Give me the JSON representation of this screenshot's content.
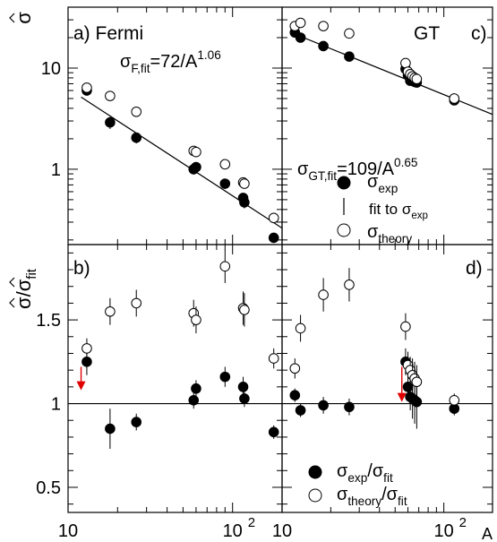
{
  "figure": {
    "x_axis_label": "A",
    "y_axis_label_top": "σ̂",
    "y_axis_label_bottom": "σ̂/σ̂_fit",
    "x_tick_labels": {
      "10": "10",
      "100": "10^2"
    }
  },
  "chart_data": [
    {
      "type": "scatter",
      "panel": "a",
      "panel_label": "a) Fermi",
      "fit_label": "σ_F,fit=72/A^1.06",
      "fit": {
        "coefficient": 72,
        "exponent": -1.06
      },
      "x_scale": "log",
      "y_scale": "log",
      "xlim": [
        10,
        200
      ],
      "ylim": [
        0.18,
        40
      ],
      "y_ticks": [
        1,
        10
      ],
      "series": [
        {
          "name": "σ_exp",
          "marker": "filled-circle",
          "points": [
            [
              13,
              6.0
            ],
            [
              18,
              2.9
            ],
            [
              26,
              2.05
            ],
            [
              58,
              1.0
            ],
            [
              60,
              1.05
            ],
            [
              90,
              0.72
            ],
            [
              116,
              0.52
            ],
            [
              118,
              0.47
            ],
            [
              178,
              0.21
            ]
          ],
          "errors": [
            0.5,
            0.4,
            0.25,
            0.1,
            0.1,
            0.08,
            0.06,
            0.06,
            0.02
          ]
        },
        {
          "name": "σ_theory",
          "marker": "open-circle",
          "points": [
            [
              13,
              6.4
            ],
            [
              18,
              5.3
            ],
            [
              26,
              3.7
            ],
            [
              58,
              1.52
            ],
            [
              60,
              1.48
            ],
            [
              90,
              1.12
            ],
            [
              116,
              0.74
            ],
            [
              118,
              0.72
            ],
            [
              178,
              0.33
            ]
          ]
        }
      ]
    },
    {
      "type": "scatter",
      "panel": "c",
      "panel_label": "GT",
      "panel_letter": "c)",
      "fit_label": "σ_GT,fit=109/A^0.65",
      "fit": {
        "coefficient": 109,
        "exponent": -0.65
      },
      "x_scale": "log",
      "y_scale": "log",
      "xlim": [
        10,
        200
      ],
      "ylim": [
        0.18,
        40
      ],
      "series": [
        {
          "name": "σ_exp",
          "marker": "filled-circle",
          "points": [
            [
              12,
              22.5
            ],
            [
              13,
              20
            ],
            [
              18,
              16.5
            ],
            [
              26,
              13
            ],
            [
              58,
              9.8
            ],
            [
              60,
              8.5
            ],
            [
              62,
              7.5
            ],
            [
              64,
              7.6
            ],
            [
              66,
              7.3
            ],
            [
              68,
              7.2
            ],
            [
              116,
              4.8
            ]
          ]
        },
        {
          "name": "σ_theory",
          "marker": "open-circle",
          "points": [
            [
              12,
              26
            ],
            [
              13,
              28
            ],
            [
              18,
              26
            ],
            [
              26,
              22
            ],
            [
              58,
              11.2
            ],
            [
              60,
              9.2
            ],
            [
              62,
              8.7
            ],
            [
              64,
              8.3
            ],
            [
              66,
              8.0
            ],
            [
              68,
              7.8
            ],
            [
              116,
              5.0
            ]
          ]
        }
      ]
    },
    {
      "type": "scatter",
      "panel": "b",
      "panel_label": "b)",
      "x_scale": "log",
      "y_scale": "linear",
      "xlim": [
        10,
        200
      ],
      "ylim": [
        0.35,
        1.95
      ],
      "y_ticks": [
        0.5,
        1,
        1.5
      ],
      "reference_line": 1,
      "arrow": {
        "x": 12,
        "from": 1.22,
        "to": 1.08,
        "color": "#e00000"
      },
      "series": [
        {
          "name": "σ_exp/σ_fit",
          "marker": "filled-circle",
          "points": [
            [
              13,
              1.25
            ],
            [
              18,
              0.85
            ],
            [
              26,
              0.89
            ],
            [
              58,
              1.02
            ],
            [
              60,
              1.09
            ],
            [
              90,
              1.16
            ],
            [
              116,
              1.1
            ],
            [
              118,
              1.03
            ],
            [
              178,
              0.83
            ]
          ],
          "errors": [
            0.08,
            0.12,
            0.05,
            0.05,
            0.05,
            0.06,
            0.06,
            0.05,
            0.04
          ]
        },
        {
          "name": "σ_theory/σ_fit",
          "marker": "open-circle",
          "points": [
            [
              13,
              1.33
            ],
            [
              18,
              1.55
            ],
            [
              26,
              1.6
            ],
            [
              58,
              1.54
            ],
            [
              60,
              1.5
            ],
            [
              90,
              1.82
            ],
            [
              116,
              1.57
            ],
            [
              118,
              1.56
            ],
            [
              178,
              1.27
            ]
          ],
          "errors": [
            0.06,
            0.08,
            0.08,
            0.08,
            0.08,
            0.1,
            0.1,
            0.1,
            0.06
          ]
        }
      ]
    },
    {
      "type": "scatter",
      "panel": "d",
      "panel_label": "d)",
      "x_scale": "log",
      "y_scale": "linear",
      "xlim": [
        10,
        200
      ],
      "ylim": [
        0.35,
        1.95
      ],
      "reference_line": 1,
      "arrow": {
        "x": 55,
        "from": 1.22,
        "to": 1.01,
        "color": "#e00000"
      },
      "series": [
        {
          "name": "σ_exp/σ_fit",
          "marker": "filled-circle",
          "points": [
            [
              12,
              1.05
            ],
            [
              13,
              0.96
            ],
            [
              18,
              0.99
            ],
            [
              26,
              0.98
            ],
            [
              58,
              1.25
            ],
            [
              60,
              1.1
            ],
            [
              62,
              1.04
            ],
            [
              64,
              1.03
            ],
            [
              66,
              1.02
            ],
            [
              68,
              1.01
            ],
            [
              116,
              0.97
            ]
          ],
          "errors": [
            0.04,
            0.04,
            0.05,
            0.05,
            0.08,
            0.08,
            0.08,
            0.12,
            0.14,
            0.16,
            0.04
          ]
        },
        {
          "name": "σ_theory/σ_fit",
          "marker": "open-circle",
          "points": [
            [
              12,
              1.21
            ],
            [
              13,
              1.45
            ],
            [
              18,
              1.65
            ],
            [
              26,
              1.71
            ],
            [
              58,
              1.46
            ],
            [
              60,
              1.23
            ],
            [
              62,
              1.2
            ],
            [
              64,
              1.17
            ],
            [
              66,
              1.15
            ],
            [
              68,
              1.13
            ],
            [
              116,
              1.02
            ]
          ],
          "errors": [
            0.06,
            0.08,
            0.1,
            0.1,
            0.08,
            0.08,
            0.08,
            0.1,
            0.1,
            0.1,
            0.04
          ]
        }
      ]
    }
  ],
  "legend_top": {
    "exp": "σ_exp",
    "fit": "fit to σ_exp",
    "theory": "σ_theory"
  },
  "legend_bottom": {
    "exp": "σ_exp/σ_fit",
    "theory": "σ_theory/σ_fit"
  }
}
